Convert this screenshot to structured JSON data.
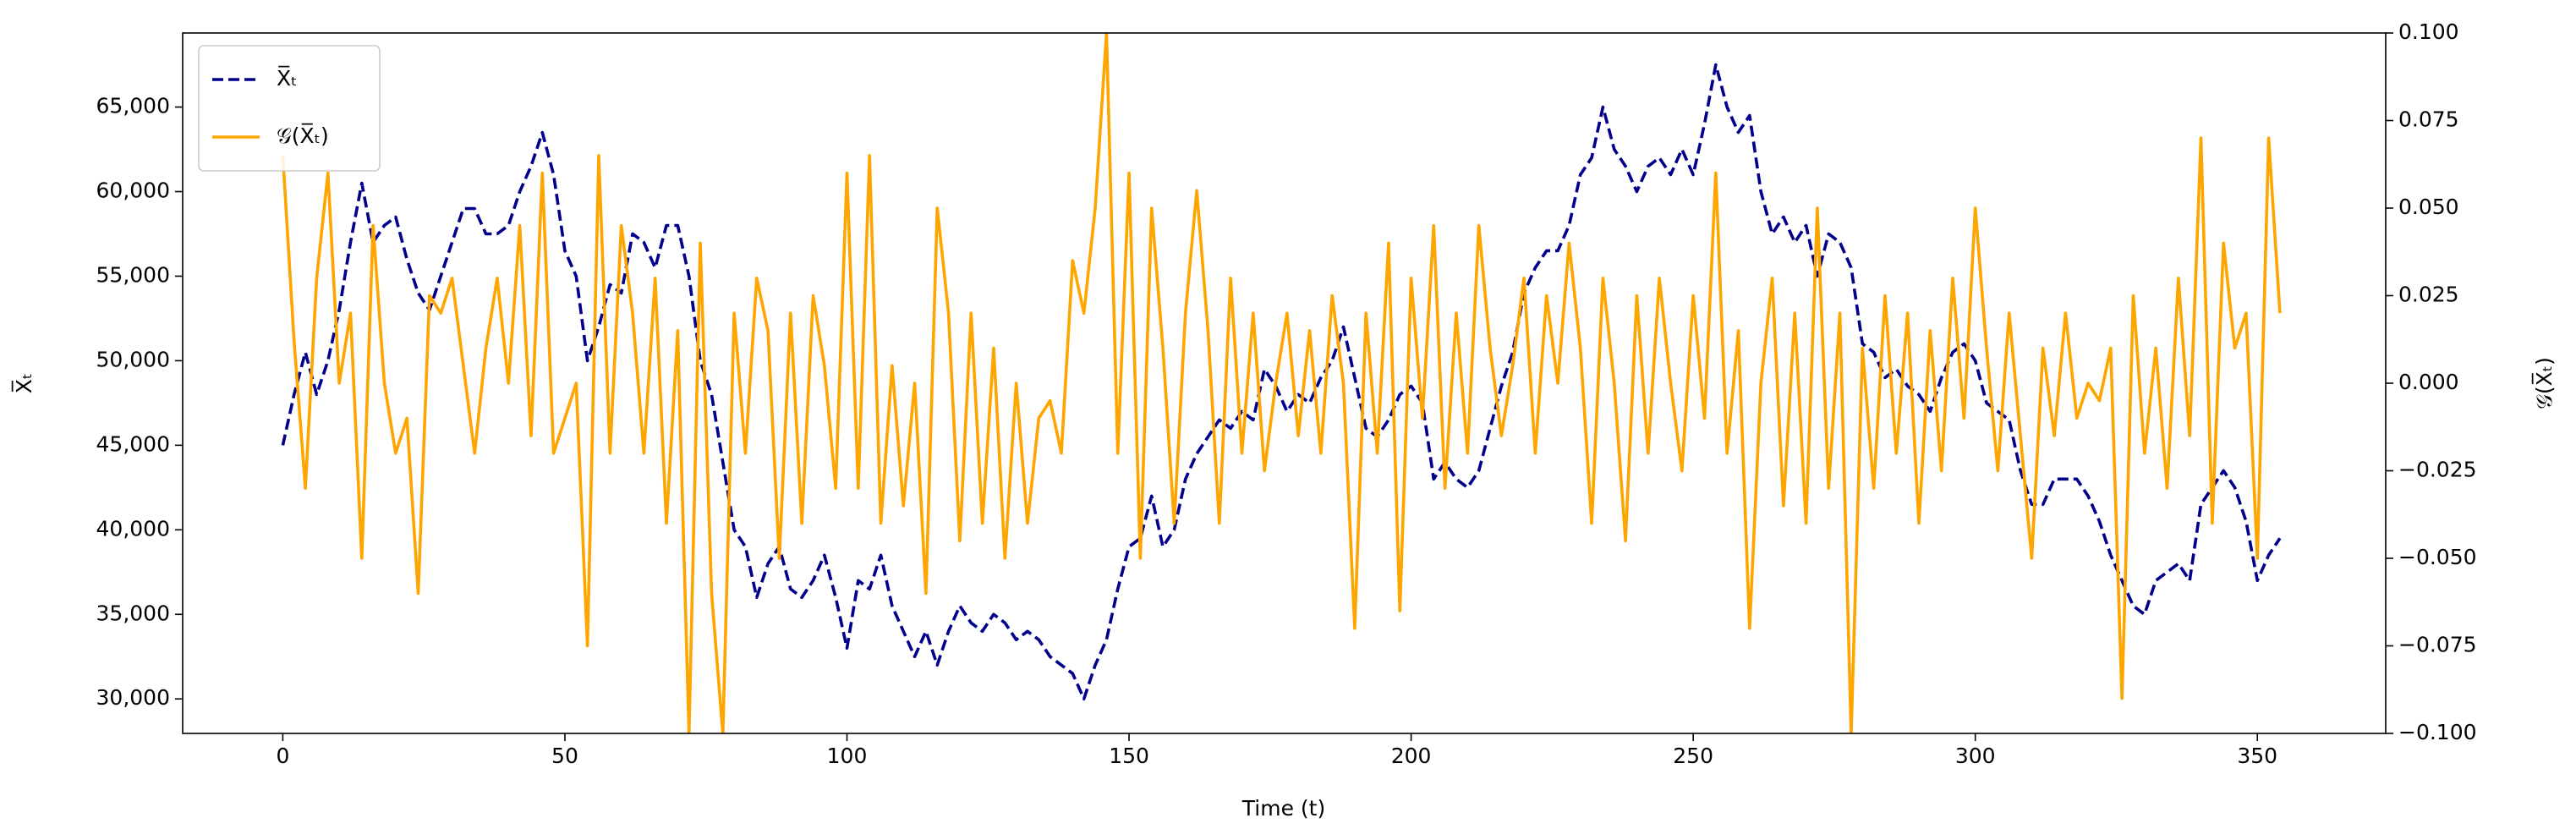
{
  "chart_data": {
    "type": "line",
    "xlabel": "Time (t)",
    "ylabel": "X̅ₜ",
    "y2label": "𝒢(X̅ₜ)",
    "x": [
      0,
      2,
      4,
      6,
      8,
      10,
      12,
      14,
      16,
      18,
      20,
      22,
      24,
      26,
      28,
      30,
      32,
      34,
      36,
      38,
      40,
      42,
      44,
      46,
      48,
      50,
      52,
      54,
      56,
      58,
      60,
      62,
      64,
      66,
      68,
      70,
      72,
      74,
      76,
      78,
      80,
      82,
      84,
      86,
      88,
      90,
      92,
      94,
      96,
      98,
      100,
      102,
      104,
      106,
      108,
      110,
      112,
      114,
      116,
      118,
      120,
      122,
      124,
      126,
      128,
      130,
      132,
      134,
      136,
      138,
      140,
      142,
      144,
      146,
      148,
      150,
      152,
      154,
      156,
      158,
      160,
      162,
      164,
      166,
      168,
      170,
      172,
      174,
      176,
      178,
      180,
      182,
      184,
      186,
      188,
      190,
      192,
      194,
      196,
      198,
      200,
      202,
      204,
      206,
      208,
      210,
      212,
      214,
      216,
      218,
      220,
      222,
      224,
      226,
      228,
      230,
      232,
      234,
      236,
      238,
      240,
      242,
      244,
      246,
      248,
      250,
      252,
      254,
      256,
      258,
      260,
      262,
      264,
      266,
      268,
      270,
      272,
      274,
      276,
      278,
      280,
      282,
      284,
      286,
      288,
      290,
      292,
      294,
      296,
      298,
      300,
      302,
      304,
      306,
      308,
      310,
      312,
      314,
      316,
      318,
      320,
      322,
      324,
      326,
      328,
      330,
      332,
      334,
      336,
      338,
      340,
      342,
      344,
      346,
      348,
      350,
      352,
      354
    ],
    "series": [
      {
        "name": "X̅ₜ",
        "color": "#00008b",
        "dash": true,
        "axis": "y",
        "values": [
          45000,
          48000,
          50500,
          48000,
          50000,
          53000,
          57000,
          60500,
          57000,
          58000,
          58500,
          56000,
          54000,
          53000,
          55000,
          57000,
          59000,
          59000,
          57500,
          57500,
          58000,
          60000,
          61500,
          63500,
          61000,
          56500,
          55000,
          50000,
          52000,
          54500,
          54000,
          57500,
          57000,
          55500,
          58000,
          58000,
          55000,
          50000,
          48000,
          44000,
          40000,
          39000,
          36000,
          38000,
          39000,
          36500,
          36000,
          37000,
          38500,
          36000,
          33000,
          37000,
          36500,
          38500,
          35500,
          34000,
          32500,
          34000,
          32000,
          34000,
          35500,
          34500,
          34000,
          35000,
          34500,
          33500,
          34000,
          33500,
          32500,
          32000,
          31500,
          30000,
          32000,
          33500,
          36500,
          39000,
          39500,
          42000,
          39000,
          40000,
          43000,
          44500,
          45500,
          46500,
          46000,
          47000,
          46500,
          49500,
          48500,
          47000,
          48000,
          47500,
          49000,
          50000,
          52000,
          49000,
          46000,
          45500,
          46500,
          48000,
          48500,
          47500,
          43000,
          44000,
          43000,
          42500,
          43500,
          46000,
          48500,
          50500,
          54000,
          55500,
          56500,
          56500,
          58000,
          61000,
          62000,
          65000,
          62500,
          61500,
          60000,
          61500,
          62000,
          61000,
          62500,
          61000,
          64000,
          67500,
          65000,
          63500,
          64500,
          60000,
          57500,
          58500,
          57000,
          58000,
          55000,
          57500,
          57000,
          55500,
          51000,
          50500,
          49000,
          49500,
          48500,
          48000,
          47000,
          49000,
          50500,
          51000,
          50000,
          47500,
          47000,
          46500,
          43500,
          41500,
          41500,
          43000,
          43000,
          43000,
          42000,
          40500,
          38500,
          37000,
          35500,
          35000,
          37000,
          37500,
          38000,
          37000,
          41500,
          42500,
          43500,
          42500,
          40500,
          37000,
          38500,
          39500
        ]
      },
      {
        "name": "𝒢(X̅ₜ)",
        "color": "#ffa500",
        "dash": false,
        "axis": "y2",
        "values": [
          0.065,
          0.012,
          -0.03,
          0.03,
          0.06,
          0.0,
          0.02,
          -0.05,
          0.045,
          0.0,
          -0.02,
          -0.01,
          -0.06,
          0.025,
          0.02,
          0.03,
          0.005,
          -0.02,
          0.01,
          0.03,
          0.0,
          0.045,
          -0.015,
          0.06,
          -0.02,
          -0.01,
          0.0,
          -0.075,
          0.065,
          -0.02,
          0.045,
          0.02,
          -0.02,
          0.03,
          -0.04,
          0.015,
          -0.1,
          0.04,
          -0.06,
          -0.1,
          0.02,
          -0.02,
          0.03,
          0.015,
          -0.05,
          0.02,
          -0.04,
          0.025,
          0.005,
          -0.03,
          0.06,
          -0.03,
          0.065,
          -0.04,
          0.005,
          -0.035,
          0.0,
          -0.06,
          0.05,
          0.02,
          -0.045,
          0.02,
          -0.04,
          0.01,
          -0.05,
          0.0,
          -0.04,
          -0.01,
          -0.005,
          -0.02,
          0.035,
          0.02,
          0.05,
          0.1,
          -0.02,
          0.06,
          -0.05,
          0.05,
          0.01,
          -0.04,
          0.02,
          0.055,
          0.015,
          -0.04,
          0.03,
          -0.02,
          0.02,
          -0.025,
          0.0,
          0.02,
          -0.015,
          0.015,
          -0.02,
          0.025,
          0.0,
          -0.07,
          0.02,
          -0.02,
          0.04,
          -0.065,
          0.03,
          -0.01,
          0.045,
          -0.03,
          0.02,
          -0.02,
          0.045,
          0.01,
          -0.015,
          0.005,
          0.03,
          -0.02,
          0.025,
          0.0,
          0.04,
          0.01,
          -0.04,
          0.03,
          0.0,
          -0.045,
          0.025,
          -0.02,
          0.03,
          0.0,
          -0.025,
          0.025,
          -0.01,
          0.06,
          -0.02,
          0.015,
          -0.07,
          0.0,
          0.03,
          -0.035,
          0.02,
          -0.04,
          0.05,
          -0.03,
          0.02,
          -0.1,
          0.01,
          -0.03,
          0.025,
          -0.02,
          0.02,
          -0.04,
          0.015,
          -0.025,
          0.03,
          -0.01,
          0.05,
          0.01,
          -0.025,
          0.02,
          -0.015,
          -0.05,
          0.01,
          -0.015,
          0.02,
          -0.01,
          0.0,
          -0.005,
          0.01,
          -0.09,
          0.025,
          -0.02,
          0.01,
          -0.03,
          0.03,
          -0.015,
          0.07,
          -0.04,
          0.04,
          0.01,
          0.02,
          -0.05,
          0.07,
          0.02
        ]
      }
    ],
    "xlim": [
      -17.75,
      372.75
    ],
    "xticks": [
      0,
      50,
      100,
      150,
      200,
      250,
      300,
      350
    ],
    "ylim": [
      27960,
      69380
    ],
    "yticks": [
      {
        "value": 30000,
        "label": "30,000"
      },
      {
        "value": 35000,
        "label": "35,000"
      },
      {
        "value": 40000,
        "label": "40,000"
      },
      {
        "value": 45000,
        "label": "45,000"
      },
      {
        "value": 50000,
        "label": "50,000"
      },
      {
        "value": 55000,
        "label": "55,000"
      },
      {
        "value": 60000,
        "label": "60,000"
      },
      {
        "value": 65000,
        "label": "65,000"
      }
    ],
    "y2lim": [
      -0.1,
      0.1
    ],
    "y2ticks": [
      {
        "value": -0.1,
        "label": "−0.100"
      },
      {
        "value": -0.075,
        "label": "−0.075"
      },
      {
        "value": -0.05,
        "label": "−0.050"
      },
      {
        "value": -0.025,
        "label": "−0.025"
      },
      {
        "value": 0,
        "label": "0.000"
      },
      {
        "value": 0.025,
        "label": "0.025"
      },
      {
        "value": 0.05,
        "label": "0.050"
      },
      {
        "value": 0.075,
        "label": "0.075"
      },
      {
        "value": 0.1,
        "label": "0.100"
      }
    ],
    "legend": "upper left",
    "grid": false
  }
}
